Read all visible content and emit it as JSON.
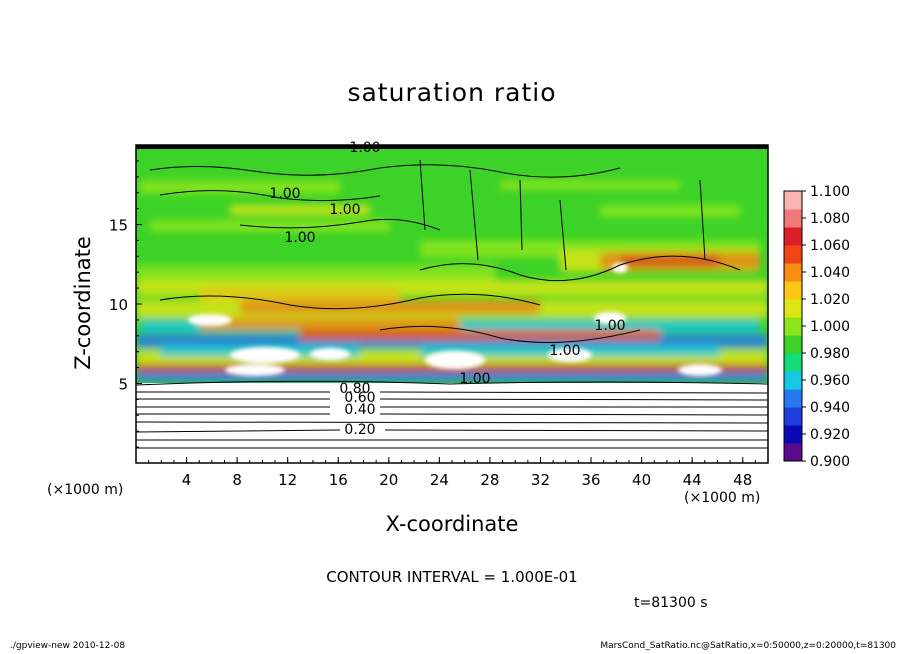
{
  "chart_data": {
    "type": "heatmap",
    "title": "saturation ratio",
    "xlabel": "X-coordinate",
    "ylabel": "Z-coordinate",
    "x_unit_left": "(×1000 m)",
    "x_unit_right": "(×1000 m)",
    "xlim": [
      0,
      50
    ],
    "ylim": [
      0,
      20
    ],
    "x_ticks": [
      4,
      8,
      12,
      16,
      20,
      24,
      28,
      32,
      36,
      40,
      44,
      48
    ],
    "y_ticks": [
      5,
      10,
      15
    ],
    "colorbar": {
      "min": 0.9,
      "max": 1.1,
      "ticks": [
        "1.100",
        "1.080",
        "1.060",
        "1.040",
        "1.020",
        "1.000",
        "0.980",
        "0.960",
        "0.940",
        "0.920",
        "0.900"
      ],
      "colors": [
        "#5a0c8c",
        "#0a0ab4",
        "#1e3cdc",
        "#2878f0",
        "#14c8e6",
        "#14dc78",
        "#3cd228",
        "#8ce61e",
        "#dce614",
        "#fac814",
        "#fa8c14",
        "#f04614",
        "#dc1e28",
        "#f07878",
        "#fab4b4"
      ]
    },
    "contour_labels": [
      "1.00",
      "1.00",
      "1.00",
      "1.00",
      "1.00",
      "1.00",
      "1.00",
      "0.80",
      "0.60",
      "0.40",
      "0.20"
    ],
    "contour_interval_text": "CONTOUR INTERVAL = 1.000E-01",
    "time_text": "t=81300 s"
  },
  "footer": {
    "left": "./gpview-new   2010-12-08",
    "right": "MarsCond_SatRatio.nc@SatRatio,x=0:50000,z=0:20000,t=81300"
  }
}
